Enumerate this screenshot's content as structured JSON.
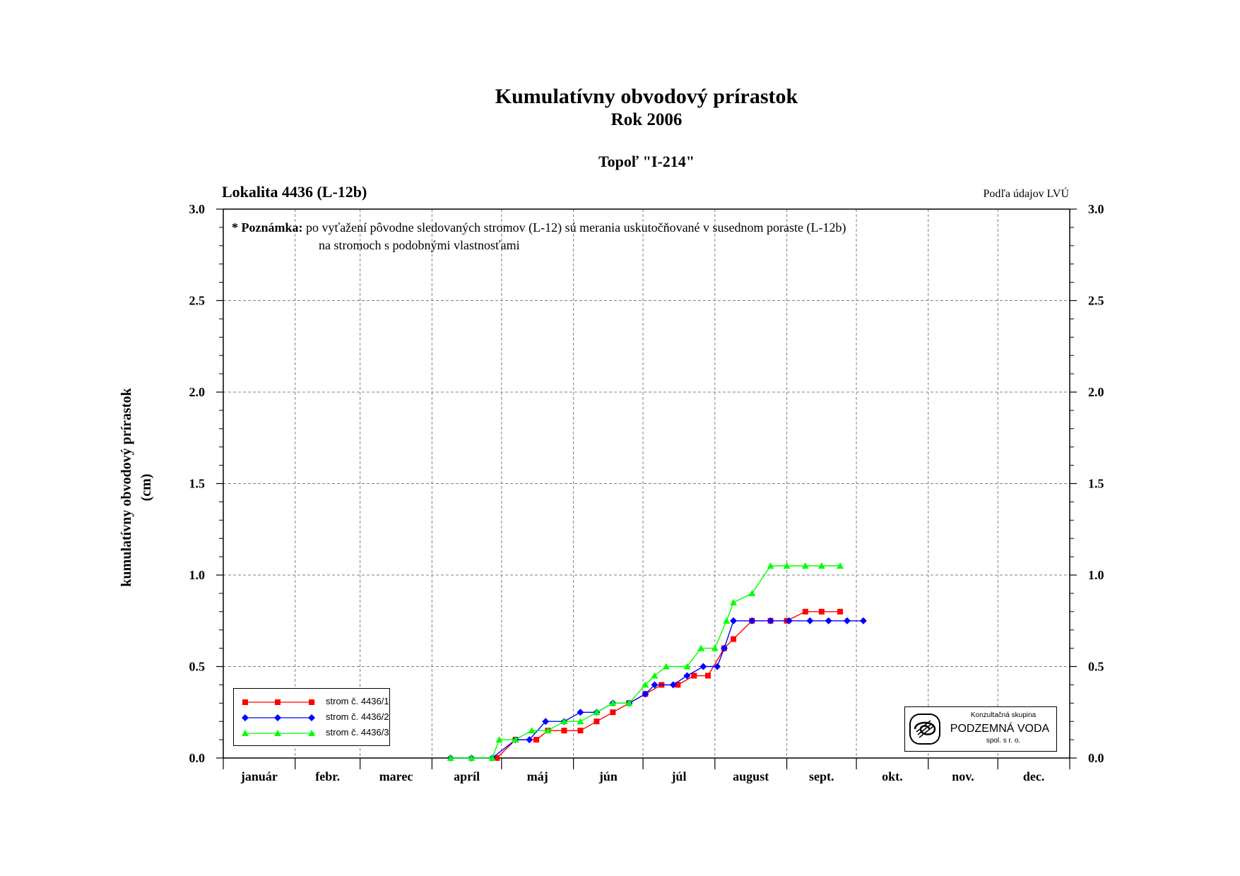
{
  "header": {
    "title": "Kumulatívny obvodový prírastok",
    "subtitle": "Rok 2006",
    "tree": "Topoľ \"I-214\"",
    "locality": "Lokalita 4436 (L-12b)",
    "source": "Podľa údajov LVÚ"
  },
  "axes": {
    "ylabel_line1": "kumulatívny obvodový prírastok",
    "ylabel_line2": "(cm)"
  },
  "note": {
    "label": "* Poznámka:",
    "line1": "po vyťažení pôvodne sledovaných stromov (L-12) sú merania uskutočňované v susednom poraste (L-12b)",
    "line2": "na stromoch s podobnými vlastnosťami"
  },
  "logo": {
    "line1": "Konzultačná skupina",
    "line2": "PODZEMNÁ VODA",
    "line3": "spol. s r. o."
  },
  "colors": {
    "series1": "#ff0000",
    "series2": "#0000ff",
    "series3": "#00ff00",
    "grid": "#808080"
  },
  "chart_data": {
    "type": "line",
    "title": "Kumulatívny obvodový prírastok",
    "ylabel": "kumulatívny obvodový prírastok (cm)",
    "xlabel": "",
    "months": [
      "január",
      "febr.",
      "marec",
      "apríl",
      "máj",
      "jún",
      "júl",
      "august",
      "sept.",
      "okt.",
      "nov.",
      "dec."
    ],
    "x_unit": "day of year 2006",
    "xlim": [
      1,
      366
    ],
    "ylim": [
      0,
      3.0
    ],
    "yticks": [
      "0.0",
      "0.5",
      "1.0",
      "1.5",
      "2.0",
      "2.5",
      "3.0"
    ],
    "grid": true,
    "legend_position": "bottom-left",
    "series": [
      {
        "name": "strom č. 4436/1",
        "color": "#ff0000",
        "marker": "square",
        "points": [
          [
            119,
            0.0
          ],
          [
            127,
            0.1
          ],
          [
            136,
            0.1
          ],
          [
            141,
            0.15
          ],
          [
            148,
            0.15
          ],
          [
            155,
            0.15
          ],
          [
            162,
            0.2
          ],
          [
            169,
            0.25
          ],
          [
            176,
            0.3
          ],
          [
            183,
            0.35
          ],
          [
            190,
            0.4
          ],
          [
            197,
            0.4
          ],
          [
            204,
            0.45
          ],
          [
            210,
            0.45
          ],
          [
            217,
            0.6
          ],
          [
            221,
            0.65
          ],
          [
            229,
            0.75
          ],
          [
            237,
            0.75
          ],
          [
            244,
            0.75
          ],
          [
            252,
            0.8
          ],
          [
            259,
            0.8
          ],
          [
            267,
            0.8
          ]
        ]
      },
      {
        "name": "strom č. 4436/2",
        "color": "#0000ff",
        "marker": "diamond",
        "points": [
          [
            99,
            0.0
          ],
          [
            108,
            0.0
          ],
          [
            117,
            0.0
          ],
          [
            127,
            0.1
          ],
          [
            133,
            0.1
          ],
          [
            140,
            0.2
          ],
          [
            148,
            0.2
          ],
          [
            155,
            0.25
          ],
          [
            162,
            0.25
          ],
          [
            169,
            0.3
          ],
          [
            176,
            0.3
          ],
          [
            183,
            0.35
          ],
          [
            187,
            0.4
          ],
          [
            195,
            0.4
          ],
          [
            201,
            0.45
          ],
          [
            208,
            0.5
          ],
          [
            214,
            0.5
          ],
          [
            217,
            0.6
          ],
          [
            221,
            0.75
          ],
          [
            229,
            0.75
          ],
          [
            237,
            0.75
          ],
          [
            245,
            0.75
          ],
          [
            254,
            0.75
          ],
          [
            262,
            0.75
          ],
          [
            270,
            0.75
          ],
          [
            277,
            0.75
          ]
        ]
      },
      {
        "name": "strom č. 4436/3",
        "color": "#00ff00",
        "marker": "triangle",
        "points": [
          [
            99,
            0.0
          ],
          [
            108,
            0.0
          ],
          [
            117,
            0.0
          ],
          [
            120,
            0.1
          ],
          [
            127,
            0.1
          ],
          [
            134,
            0.15
          ],
          [
            141,
            0.15
          ],
          [
            148,
            0.2
          ],
          [
            155,
            0.2
          ],
          [
            162,
            0.25
          ],
          [
            169,
            0.3
          ],
          [
            176,
            0.3
          ],
          [
            183,
            0.4
          ],
          [
            187,
            0.45
          ],
          [
            192,
            0.5
          ],
          [
            201,
            0.5
          ],
          [
            207,
            0.6
          ],
          [
            213,
            0.6
          ],
          [
            218,
            0.75
          ],
          [
            221,
            0.85
          ],
          [
            229,
            0.9
          ],
          [
            237,
            1.05
          ],
          [
            244,
            1.05
          ],
          [
            252,
            1.05
          ],
          [
            259,
            1.05
          ],
          [
            267,
            1.05
          ]
        ]
      }
    ]
  }
}
